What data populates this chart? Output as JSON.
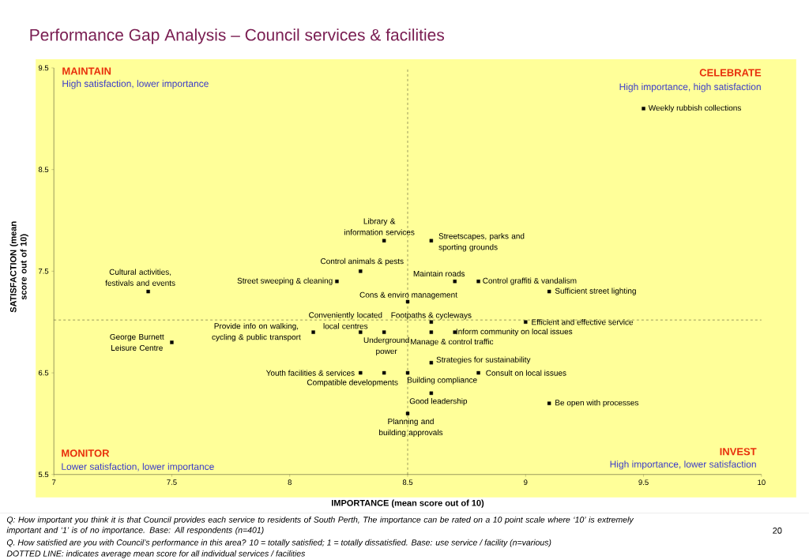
{
  "chart_data": {
    "type": "scatter",
    "title": "Performance Gap Analysis – Council services & facilities",
    "xlabel": "IMPORTANCE (mean score out of 10)",
    "ylabel": "SATISFACTION (mean score out of 10)",
    "xlim": [
      7,
      10
    ],
    "ylim": [
      5.5,
      9.5
    ],
    "xticks": [
      7,
      7.5,
      8,
      8.5,
      9,
      9.5,
      10
    ],
    "yticks": [
      5.5,
      6.5,
      7.5,
      8.5,
      9.5
    ],
    "marker": "square",
    "series": [
      {
        "color": "#000000",
        "x": [
          9.5,
          8.4,
          8.6,
          8.3,
          8.2,
          8.7,
          8.8,
          9.1,
          7.4,
          8.5,
          8.6,
          9.0,
          8.1,
          8.3,
          8.4,
          8.6,
          8.7,
          7.5,
          8.6,
          8.3,
          8.4,
          8.5,
          8.8,
          8.6,
          9.1,
          8.5
        ],
        "values": [
          9.1,
          7.8,
          7.8,
          7.5,
          7.4,
          7.4,
          7.4,
          7.3,
          7.3,
          7.2,
          7.0,
          7.0,
          6.9,
          6.9,
          6.9,
          6.9,
          6.9,
          6.8,
          6.6,
          6.5,
          6.5,
          6.5,
          6.5,
          6.3,
          6.2,
          6.1
        ]
      }
    ],
    "ref_lines": [
      {
        "axis": "x",
        "value": 8.5,
        "line_style": "dashed"
      },
      {
        "axis": "y",
        "value": 7.02,
        "line_style": "dashed"
      }
    ],
    "annotations": [
      {
        "text": "Weekly rubbish collections",
        "x": 9.5,
        "y": 9.1
      },
      {
        "text": "Library & information services",
        "x": 8.4,
        "y": 7.8
      },
      {
        "text": "Streetscapes, parks and sporting grounds",
        "x": 8.6,
        "y": 7.8
      },
      {
        "text": "Control animals & pests",
        "x": 8.3,
        "y": 7.5
      },
      {
        "text": "Street sweeping & cleaning",
        "x": 8.2,
        "y": 7.4
      },
      {
        "text": "Maintain roads",
        "x": 8.7,
        "y": 7.4
      },
      {
        "text": "Control graffiti & vandalism",
        "x": 8.8,
        "y": 7.4
      },
      {
        "text": "Sufficient street lighting",
        "x": 9.1,
        "y": 7.3
      },
      {
        "text": "Cultural activities, festivals and events",
        "x": 7.4,
        "y": 7.3
      },
      {
        "text": "Cons & enviro management",
        "x": 8.5,
        "y": 7.2
      },
      {
        "text": "Footpaths & cycleways",
        "x": 8.6,
        "y": 7.0
      },
      {
        "text": "Efficient and effective service",
        "x": 9.0,
        "y": 7.0
      },
      {
        "text": "Provide info on walking, cycling & public transport",
        "x": 8.1,
        "y": 6.9
      },
      {
        "text": "Conveniently located local centres",
        "x": 8.3,
        "y": 6.9
      },
      {
        "text": "Underground power",
        "x": 8.4,
        "y": 6.9
      },
      {
        "text": "Manage & control traffic",
        "x": 8.6,
        "y": 6.9
      },
      {
        "text": "Inform community on local issues",
        "x": 8.7,
        "y": 6.9
      },
      {
        "text": "George Burnett Leisure Centre",
        "x": 7.5,
        "y": 6.8
      },
      {
        "text": "Strategies for sustainability",
        "x": 8.6,
        "y": 6.6
      },
      {
        "text": "Youth facilities & services",
        "x": 8.3,
        "y": 6.5
      },
      {
        "text": "Compatible developments",
        "x": 8.4,
        "y": 6.5
      },
      {
        "text": "Building compliance",
        "x": 8.5,
        "y": 6.5
      },
      {
        "text": "Consult on local issues",
        "x": 8.8,
        "y": 6.5
      },
      {
        "text": "Good leadership",
        "x": 8.6,
        "y": 6.3
      },
      {
        "text": "Be open with processes",
        "x": 9.1,
        "y": 6.2
      },
      {
        "text": "Planning and building approvals",
        "x": 8.5,
        "y": 6.1
      },
      "MAINTAIN",
      "High satisfaction, lower importance",
      "CELEBRATE",
      "High importance, high satisfaction",
      "MONITOR",
      "Lower satisfaction, lower importance",
      "INVEST",
      "High importance, lower satisfaction",
      "Q: How important you think it is that Council provides each service to residents of South Perth, The importance can be rated on a 10 point scale where ‘10’ is extremely important and ‘1’ is of no importance.  Base: All respondents (n=401)",
      "Q. How satisfied are you with Council’s performance in this area?  10 = totally satisfied; 1 = totally dissatisfied.   Base: use service / facility (n=various)",
      "DOTTED LINE: indicates average mean score for all individual services / facilities",
      "20"
    ]
  }
}
